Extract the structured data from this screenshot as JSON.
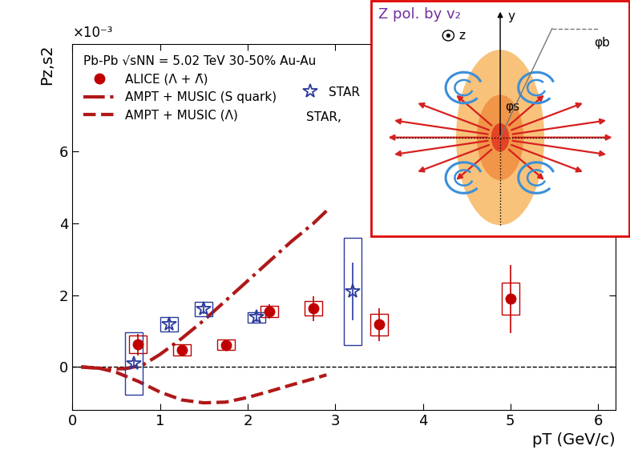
{
  "chart_data": {
    "type": "scatter",
    "xlabel": "pT (GeV/c)",
    "ylabel": "Pz,s2",
    "y_multiplier_label": "×10⁻³",
    "xlim": [
      0,
      6.2
    ],
    "ylim": [
      -1.2,
      9
    ],
    "xticks": [
      0,
      1,
      2,
      3,
      4,
      5,
      6
    ],
    "yticks": [
      0,
      2,
      4,
      6
    ],
    "reference_line": 0,
    "legend": "upper left",
    "legend_title": "Pb-Pb √sNN = 5.02 TeV 30-50% Au-Au",
    "annotations": [
      "STAR,"
    ],
    "series": [
      {
        "name": "ALICE (Λ + Λ̄)",
        "type": "scatter",
        "color": "#c00000",
        "marker": "circle",
        "x": [
          0.75,
          1.25,
          1.75,
          2.25,
          2.75,
          3.5,
          5.0
        ],
        "values": [
          0.63,
          0.48,
          0.62,
          1.55,
          1.63,
          1.18,
          1.9
        ],
        "stat_error": [
          0.3,
          0.15,
          0.15,
          0.2,
          0.35,
          0.45,
          0.95
        ],
        "sys_error": [
          0.25,
          0.15,
          0.15,
          0.15,
          0.2,
          0.3,
          0.45
        ]
      },
      {
        "name": "AMPT + MUSIC (S quark)",
        "type": "line",
        "color": "#b01818",
        "line_style": "dashdot",
        "x": [
          0.1,
          0.2,
          0.4,
          0.6,
          0.8,
          1.0,
          1.25,
          1.5,
          1.75,
          2.0,
          2.25,
          2.5,
          2.75,
          2.9
        ],
        "values": [
          0.0,
          -0.02,
          -0.05,
          -0.05,
          0.05,
          0.35,
          0.8,
          1.3,
          1.85,
          2.4,
          2.95,
          3.5,
          4.0,
          4.35
        ]
      },
      {
        "name": "AMPT + MUSIC (Λ)",
        "type": "line",
        "color": "#b01818",
        "line_style": "dashed",
        "x": [
          0.1,
          0.3,
          0.5,
          0.75,
          1.0,
          1.25,
          1.5,
          1.75,
          2.0,
          2.25,
          2.5,
          2.75,
          2.9
        ],
        "values": [
          0.0,
          -0.03,
          -0.15,
          -0.4,
          -0.7,
          -0.92,
          -1.0,
          -0.98,
          -0.85,
          -0.68,
          -0.5,
          -0.33,
          -0.22
        ]
      },
      {
        "name": "STAR",
        "type": "scatter",
        "color": "#2b3a9e",
        "marker": "star",
        "x": [
          0.7,
          1.1,
          1.5,
          2.1,
          3.2
        ],
        "values": [
          0.1,
          1.18,
          1.62,
          1.38,
          2.1
        ],
        "stat_error": [
          0.1,
          0.2,
          0.15,
          0.12,
          0.8
        ],
        "sys_error": [
          0.87,
          0.2,
          0.2,
          0.15,
          1.5
        ]
      }
    ],
    "inset": {
      "title": "Z pol. by v₂",
      "axis_labels": [
        "z",
        "y"
      ],
      "angle_labels": [
        "φb",
        "φs"
      ]
    }
  }
}
